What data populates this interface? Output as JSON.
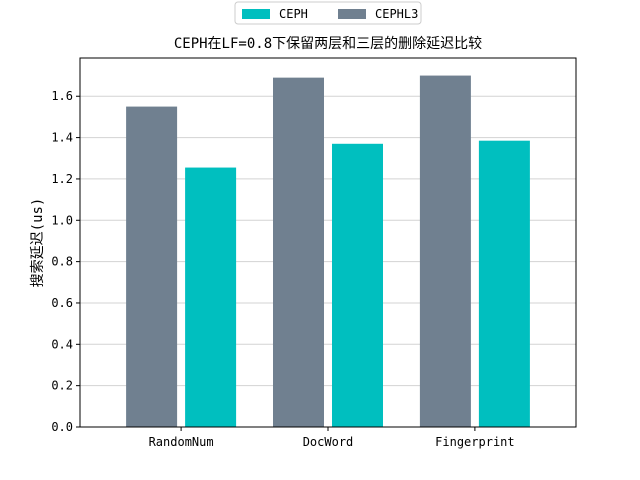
{
  "chart_data": {
    "type": "bar",
    "title": "CEPH在LF=0.8下保留两层和三层的删除延迟比较",
    "xlabel": "",
    "ylabel": "搜索延迟(us)",
    "categories": [
      "RandomNum",
      "DocWord",
      "Fingerprint"
    ],
    "series": [
      {
        "name": "CEPHL3",
        "color": "#708090",
        "values": [
          1.55,
          1.69,
          1.7
        ]
      },
      {
        "name": "CEPH",
        "color": "#00BFBF",
        "values": [
          1.255,
          1.37,
          1.385
        ]
      }
    ],
    "legend_order": [
      "CEPH",
      "CEPHL3"
    ],
    "ylim": [
      0,
      1.785
    ],
    "yticks": [
      0.0,
      0.2,
      0.4,
      0.6,
      0.8,
      1.0,
      1.2,
      1.4,
      1.6
    ],
    "ytick_labels": [
      "0.0",
      "0.2",
      "0.4",
      "0.6",
      "0.8",
      "1.0",
      "1.2",
      "1.4",
      "1.6"
    ],
    "grid": "horizontal",
    "legend_position": "top-center"
  }
}
